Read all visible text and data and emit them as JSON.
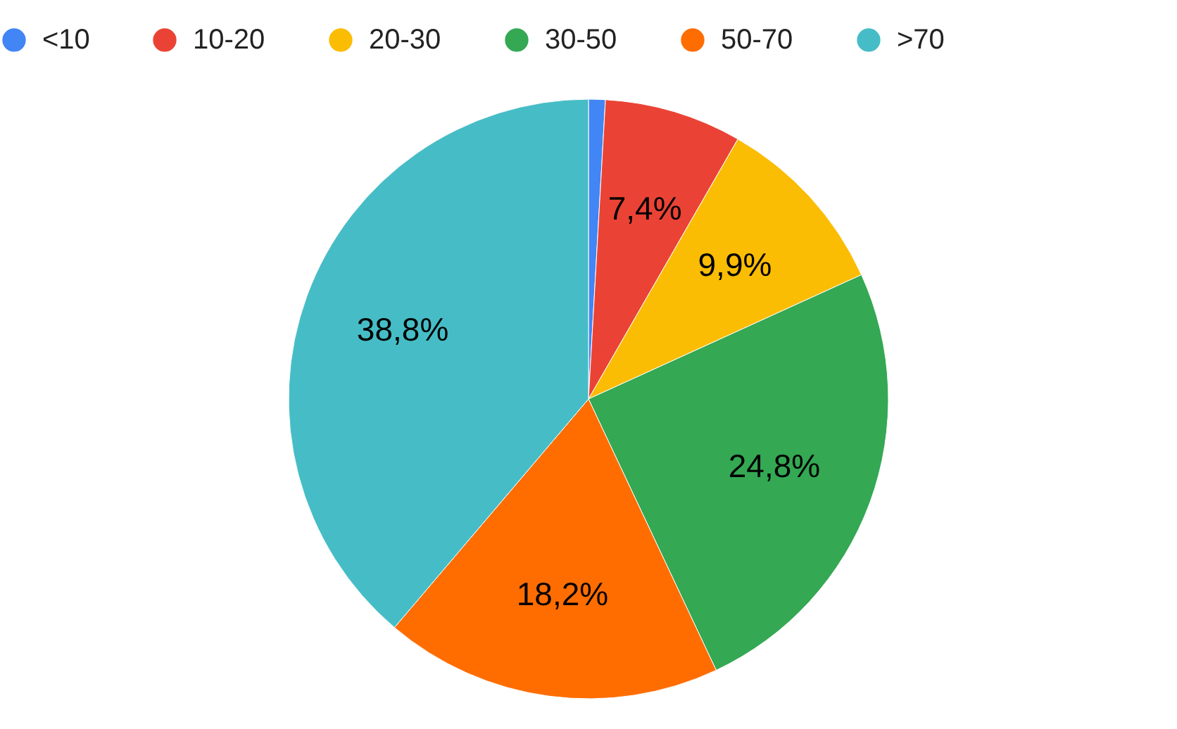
{
  "chart_data": {
    "type": "pie",
    "categories": [
      "<10",
      "10-20",
      "20-30",
      "30-50",
      "50-70",
      ">70"
    ],
    "values": [
      0.9,
      7.4,
      9.9,
      24.8,
      18.2,
      38.8
    ],
    "colors": [
      "#4285f4",
      "#ea4335",
      "#fbbc04",
      "#34a853",
      "#ff6d01",
      "#46bdc6"
    ],
    "value_labels": [
      null,
      "7,4%",
      "9,9%",
      "24,8%",
      "18,2%",
      "38,8%"
    ],
    "legend": "top"
  }
}
